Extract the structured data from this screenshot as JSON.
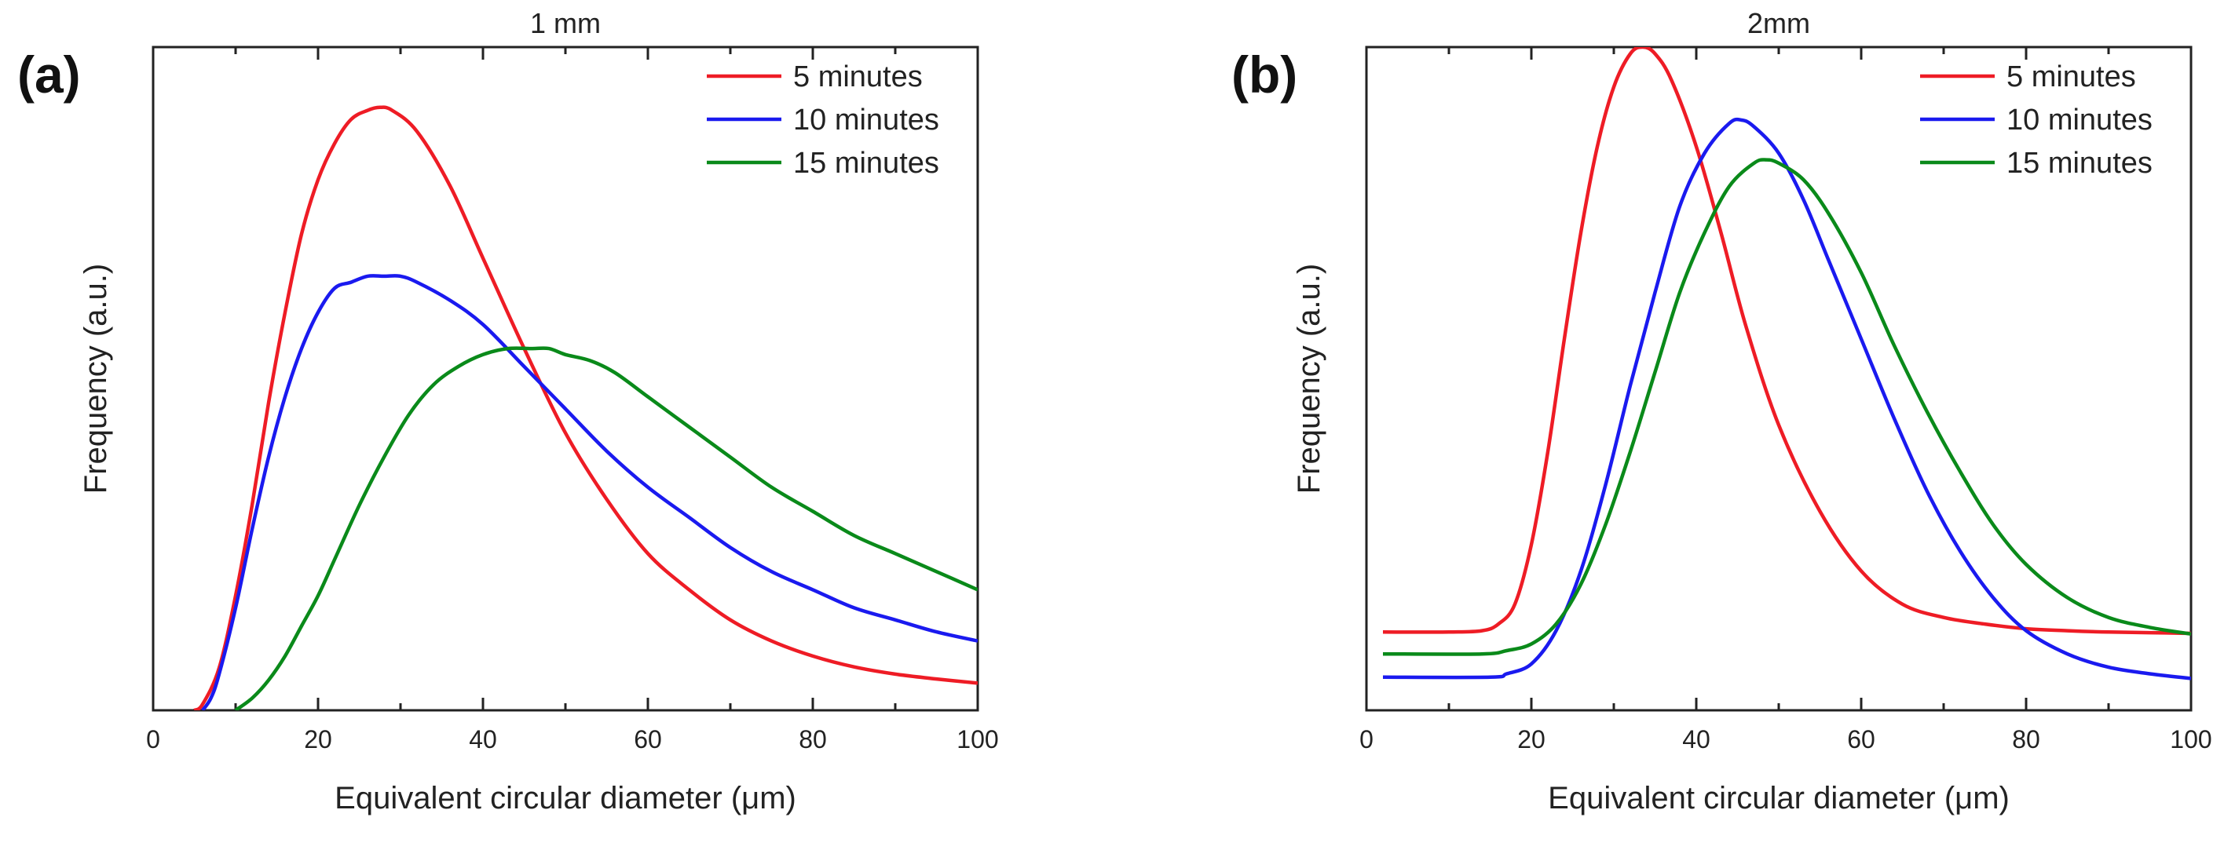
{
  "chart_data": [
    {
      "type": "line",
      "panel_label": "(a)",
      "title": "1 mm",
      "xlabel": "Equivalent circular diameter (μm)",
      "ylabel": "Frequency (a.u.)",
      "xlim": [
        0,
        100
      ],
      "ylim": [
        0,
        1.1
      ],
      "xticks": [
        "0",
        "20",
        "40",
        "60",
        "80",
        "100"
      ],
      "y_tick_labels_shown": false,
      "grid": false,
      "legend_position": "top-right",
      "series": [
        {
          "name": "5 minutes",
          "color": "#ee1c25",
          "x": [
            5,
            6,
            8,
            10,
            12,
            14,
            16,
            18,
            20,
            22,
            24,
            26,
            27.5,
            29,
            32,
            36,
            40,
            45,
            50,
            55,
            60,
            65,
            70,
            75,
            80,
            85,
            90,
            95,
            100
          ],
          "y": [
            0,
            0.01,
            0.07,
            0.19,
            0.34,
            0.51,
            0.66,
            0.79,
            0.88,
            0.94,
            0.98,
            0.995,
            1.0,
            0.995,
            0.96,
            0.87,
            0.75,
            0.6,
            0.46,
            0.35,
            0.26,
            0.2,
            0.15,
            0.115,
            0.09,
            0.072,
            0.06,
            0.052,
            0.045
          ]
        },
        {
          "name": "10 minutes",
          "color": "#1a1aef",
          "x": [
            6,
            7,
            8,
            10,
            12,
            14,
            16,
            18,
            20,
            22,
            24,
            26,
            28,
            30,
            32,
            36,
            40,
            45,
            50,
            55,
            60,
            65,
            70,
            75,
            80,
            85,
            90,
            95,
            100
          ],
          "y": [
            0,
            0.02,
            0.06,
            0.17,
            0.3,
            0.42,
            0.52,
            0.6,
            0.66,
            0.7,
            0.71,
            0.72,
            0.72,
            0.72,
            0.71,
            0.68,
            0.64,
            0.57,
            0.5,
            0.43,
            0.37,
            0.32,
            0.27,
            0.23,
            0.2,
            0.17,
            0.15,
            0.13,
            0.115
          ]
        },
        {
          "name": "15 minutes",
          "color": "#0a8a1a",
          "x": [
            10,
            12,
            14,
            16,
            18,
            20,
            22,
            25,
            28,
            31,
            34,
            37,
            40,
            43,
            46,
            48,
            50,
            53,
            56,
            60,
            65,
            70,
            75,
            80,
            85,
            90,
            95,
            100
          ],
          "y": [
            0,
            0.02,
            0.05,
            0.09,
            0.14,
            0.19,
            0.25,
            0.34,
            0.42,
            0.49,
            0.54,
            0.57,
            0.59,
            0.6,
            0.6,
            0.6,
            0.59,
            0.58,
            0.56,
            0.52,
            0.47,
            0.42,
            0.37,
            0.33,
            0.29,
            0.26,
            0.23,
            0.2
          ]
        }
      ]
    },
    {
      "type": "line",
      "panel_label": "(b)",
      "title": "2mm",
      "xlabel": "Equivalent circular diameter (μm)",
      "ylabel": "Frequency (a.u.)",
      "xlim": [
        0,
        100
      ],
      "ylim": [
        0,
        1.0
      ],
      "xticks": [
        "0",
        "20",
        "40",
        "60",
        "80",
        "100"
      ],
      "y_tick_labels_shown": false,
      "grid": false,
      "legend_position": "top-right",
      "series": [
        {
          "name": "5 minutes",
          "color": "#ee1c25",
          "x": [
            2,
            10,
            14,
            16,
            18,
            20,
            22,
            24,
            26,
            28,
            30,
            32,
            33.5,
            35,
            37,
            40,
            43,
            46,
            50,
            55,
            60,
            65,
            70,
            75,
            80,
            85,
            90,
            95,
            100
          ],
          "y": [
            0.118,
            0.118,
            0.12,
            0.13,
            0.16,
            0.25,
            0.39,
            0.56,
            0.72,
            0.85,
            0.94,
            0.99,
            1.0,
            0.99,
            0.95,
            0.85,
            0.72,
            0.58,
            0.43,
            0.3,
            0.21,
            0.16,
            0.14,
            0.13,
            0.123,
            0.12,
            0.118,
            0.117,
            0.116
          ]
        },
        {
          "name": "10 minutes",
          "color": "#1a1aef",
          "x": [
            2,
            15,
            17,
            20,
            23,
            26,
            29,
            32,
            35,
            38,
            41,
            44,
            45.5,
            47,
            50,
            53,
            56,
            60,
            64,
            68,
            72,
            76,
            80,
            85,
            90,
            95,
            100
          ],
          "y": [
            0.05,
            0.05,
            0.055,
            0.07,
            0.12,
            0.21,
            0.34,
            0.49,
            0.63,
            0.76,
            0.84,
            0.885,
            0.89,
            0.88,
            0.84,
            0.77,
            0.68,
            0.56,
            0.44,
            0.33,
            0.24,
            0.17,
            0.12,
            0.085,
            0.065,
            0.055,
            0.048
          ]
        },
        {
          "name": "15 minutes",
          "color": "#0a8a1a",
          "x": [
            2,
            14,
            17,
            20,
            23,
            26,
            29,
            32,
            35,
            38,
            41,
            44,
            47,
            48.5,
            50,
            53,
            56,
            60,
            64,
            68,
            72,
            76,
            80,
            85,
            90,
            95,
            100
          ],
          "y": [
            0.085,
            0.085,
            0.09,
            0.1,
            0.13,
            0.19,
            0.28,
            0.39,
            0.51,
            0.63,
            0.72,
            0.79,
            0.825,
            0.83,
            0.825,
            0.8,
            0.75,
            0.66,
            0.55,
            0.45,
            0.36,
            0.28,
            0.22,
            0.17,
            0.14,
            0.125,
            0.115
          ]
        }
      ]
    }
  ]
}
